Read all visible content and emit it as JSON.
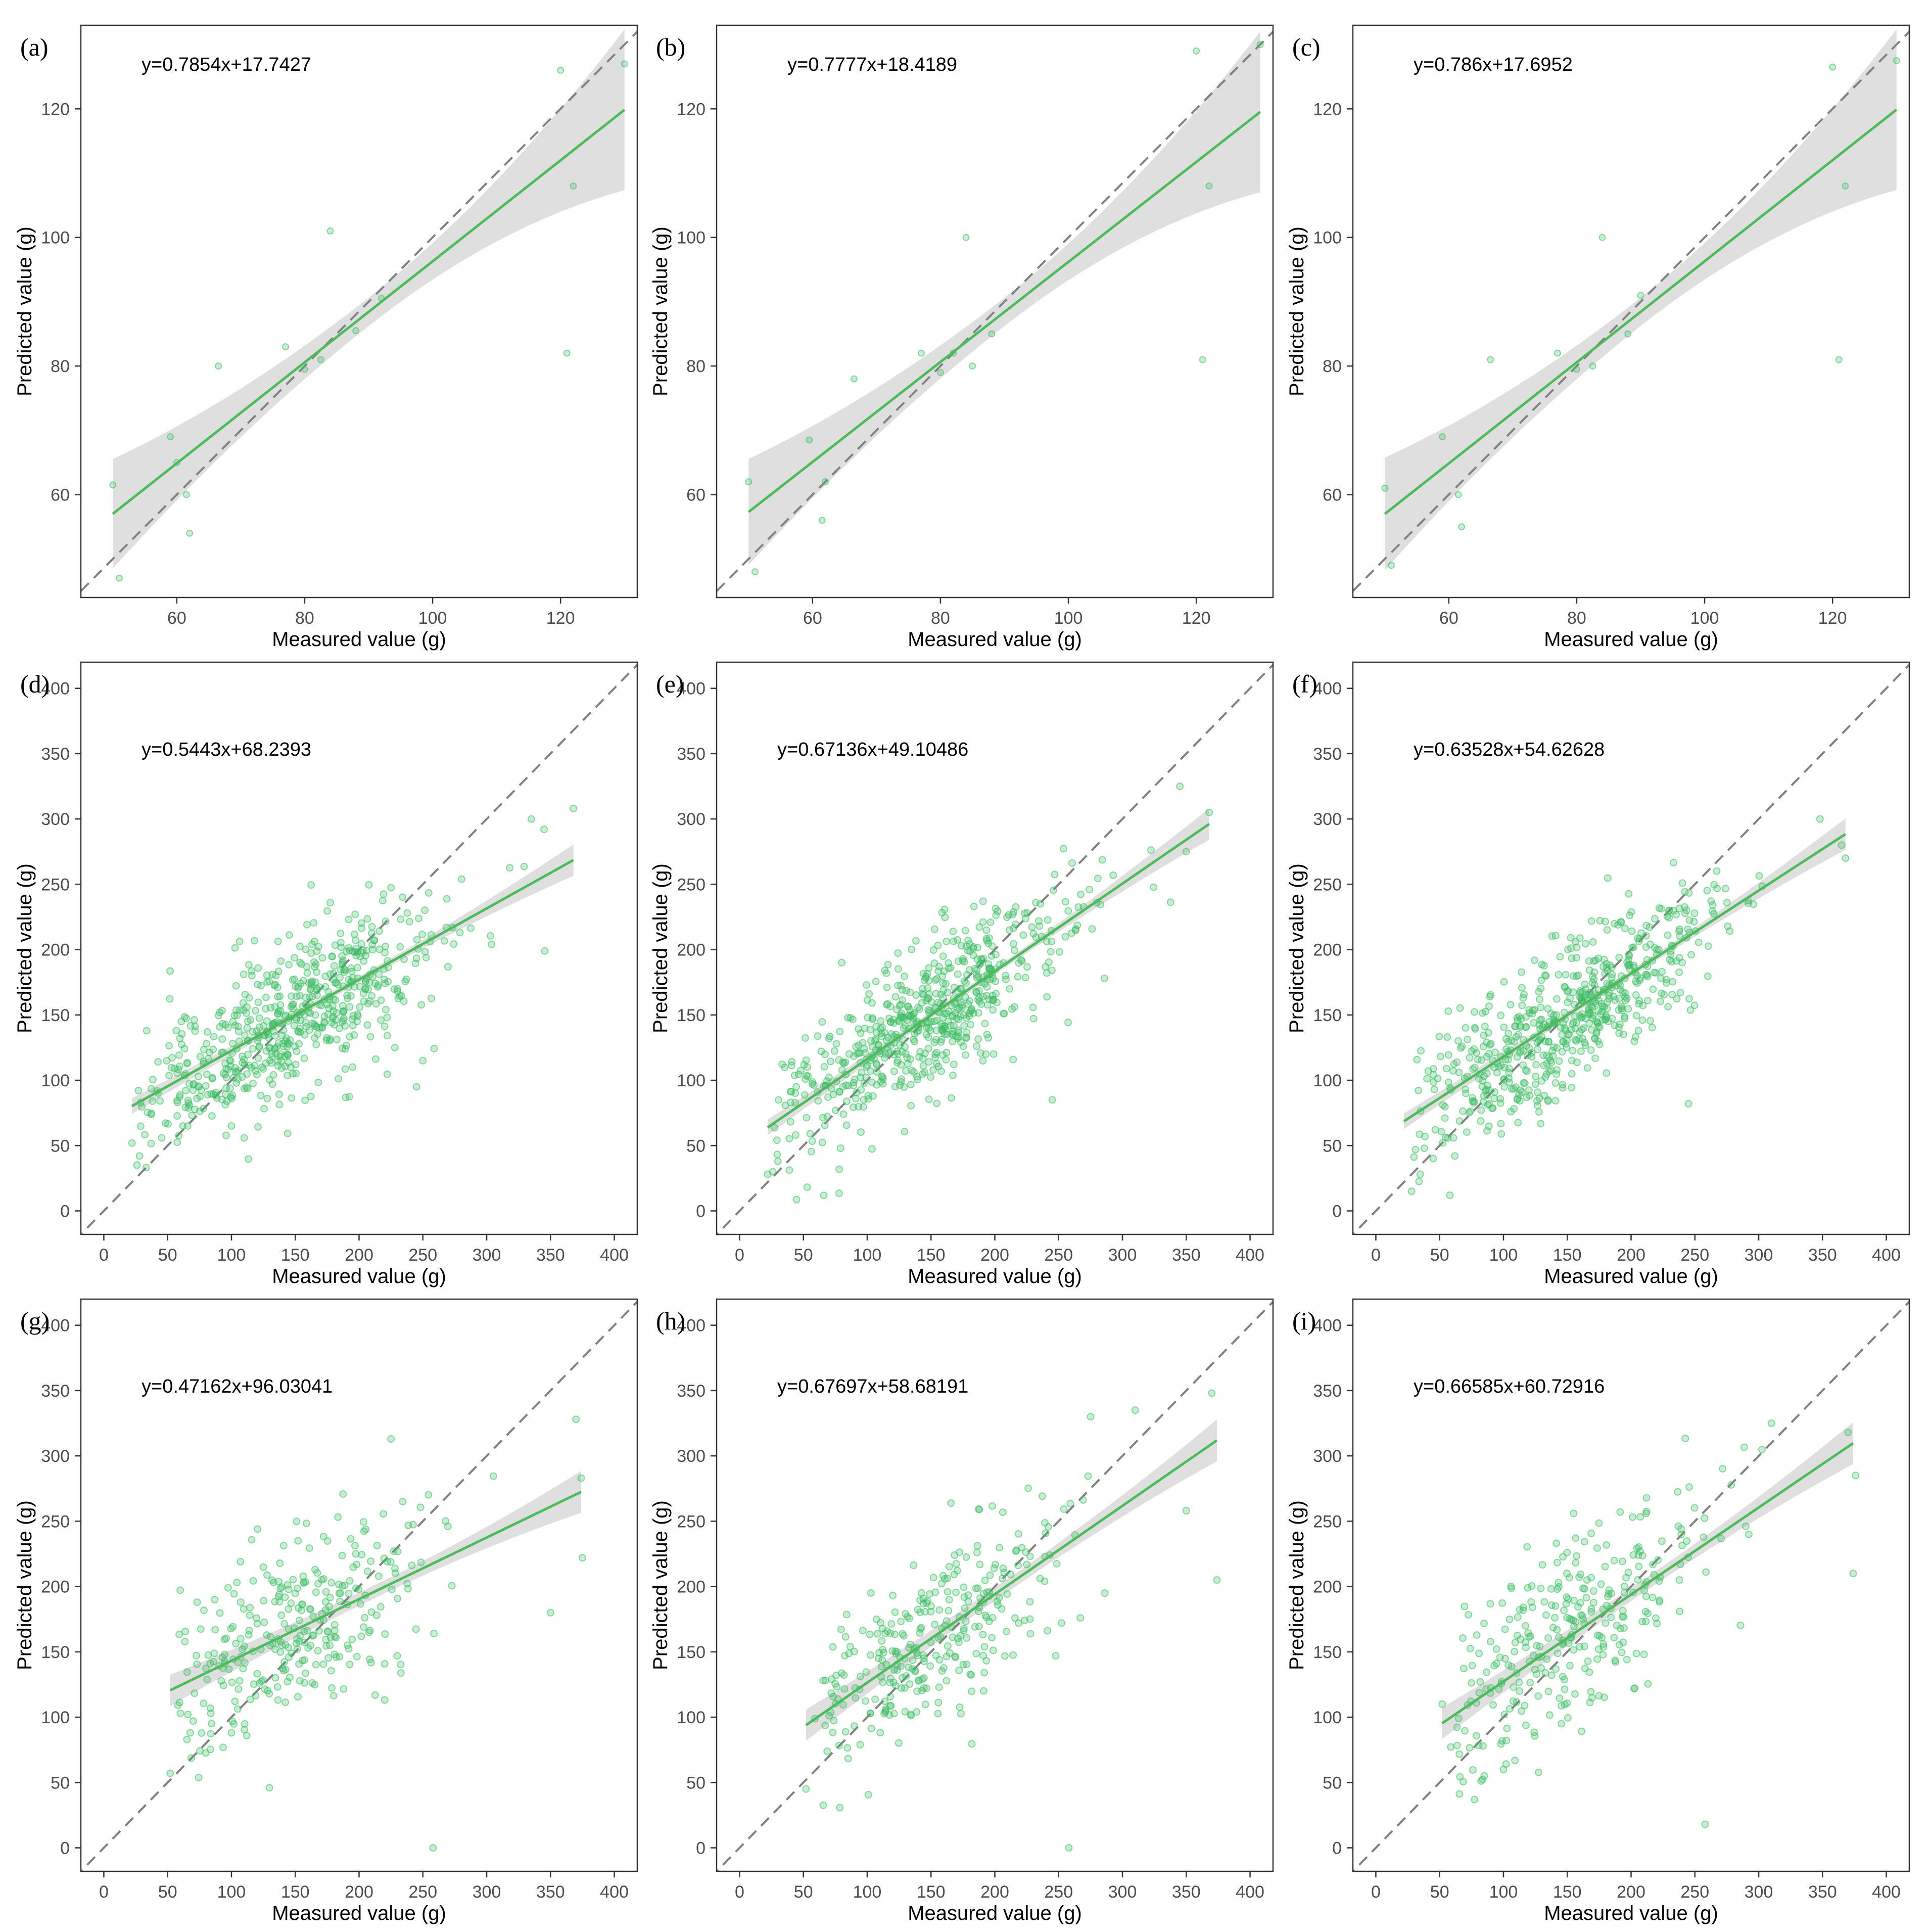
{
  "figure": {
    "axis_labels": {
      "x": "Measured value (g)",
      "y": "Predicted value (g)"
    },
    "colors": {
      "point": "#3dbb63",
      "fit_line": "#4cbb5a",
      "band": "#d9d9d9",
      "identity": "#808080",
      "frame": "#333333",
      "tick_text": "#4d4d4d"
    }
  },
  "chart_data": [
    {
      "panel": "(a)",
      "type": "scatter",
      "equation": "y=0.7854x+17.7427",
      "xlim": [
        45,
        132
      ],
      "ylim": [
        44,
        133
      ],
      "xticks": [
        60,
        80,
        100,
        120
      ],
      "yticks": [
        60,
        80,
        100,
        120
      ],
      "fit": {
        "slope": 0.7854,
        "intercept": 17.7427,
        "x_range": [
          50,
          130
        ],
        "ci_low_edge": [
          49.5,
          108
        ],
        "ci_high_edge": [
          66.5,
          133
        ]
      },
      "points": [
        [
          50,
          61.5
        ],
        [
          51,
          47
        ],
        [
          59,
          69
        ],
        [
          60,
          65
        ],
        [
          61.5,
          60
        ],
        [
          62,
          54
        ],
        [
          66.5,
          80
        ],
        [
          77,
          83
        ],
        [
          80,
          79.5
        ],
        [
          82.5,
          81
        ],
        [
          84,
          101
        ],
        [
          88,
          85.5
        ],
        [
          92,
          90.5
        ],
        [
          120,
          126
        ],
        [
          121,
          82
        ],
        [
          122,
          108
        ],
        [
          130,
          127
        ]
      ]
    },
    {
      "panel": "(b)",
      "type": "scatter",
      "equation": "y=0.7777x+18.4189",
      "xlim": [
        45,
        132
      ],
      "ylim": [
        44,
        133
      ],
      "xticks": [
        60,
        80,
        100,
        120
      ],
      "yticks": [
        60,
        80,
        100,
        120
      ],
      "fit": {
        "slope": 0.7777,
        "intercept": 18.4189,
        "x_range": [
          50,
          130
        ],
        "ci_low_edge": [
          50,
          107.5
        ],
        "ci_high_edge": [
          66.5,
          132.5
        ]
      },
      "points": [
        [
          50,
          62
        ],
        [
          51,
          48
        ],
        [
          59.5,
          68.5
        ],
        [
          61.5,
          56
        ],
        [
          62,
          62
        ],
        [
          66.5,
          78
        ],
        [
          77,
          82
        ],
        [
          80,
          79
        ],
        [
          82,
          82
        ],
        [
          84,
          100
        ],
        [
          85,
          80
        ],
        [
          88,
          85
        ],
        [
          120,
          129
        ],
        [
          121,
          81
        ],
        [
          122,
          108
        ],
        [
          130,
          130
        ]
      ]
    },
    {
      "panel": "(c)",
      "type": "scatter",
      "equation": "y=0.786x+17.6952",
      "xlim": [
        45,
        132
      ],
      "ylim": [
        44,
        133
      ],
      "xticks": [
        60,
        80,
        100,
        120
      ],
      "yticks": [
        60,
        80,
        100,
        120
      ],
      "fit": {
        "slope": 0.786,
        "intercept": 17.6952,
        "x_range": [
          50,
          130
        ],
        "ci_low_edge": [
          49,
          108
        ],
        "ci_high_edge": [
          66.5,
          133
        ]
      },
      "points": [
        [
          50,
          61
        ],
        [
          51,
          49
        ],
        [
          59,
          69
        ],
        [
          61.5,
          60
        ],
        [
          62,
          55
        ],
        [
          66.5,
          81
        ],
        [
          77,
          82
        ],
        [
          80,
          79.5
        ],
        [
          82.5,
          80
        ],
        [
          84,
          100
        ],
        [
          88,
          85
        ],
        [
          90,
          91
        ],
        [
          120,
          126.5
        ],
        [
          121,
          81
        ],
        [
          122,
          108
        ],
        [
          130,
          127.5
        ]
      ]
    },
    {
      "panel": "(d)",
      "type": "scatter",
      "equation": "y=0.5443x+68.2393",
      "xlim": [
        -18,
        418
      ],
      "ylim": [
        -18,
        420
      ],
      "xticks": [
        0,
        50,
        100,
        150,
        200,
        250,
        300,
        350,
        400
      ],
      "yticks": [
        0,
        50,
        100,
        150,
        200,
        250,
        300,
        350,
        400
      ],
      "fit": {
        "slope": 0.5443,
        "intercept": 68.2393,
        "x_range": [
          22,
          368
        ],
        "band_halfwidth": [
          6,
          2.5,
          12
        ]
      },
      "n_points": 600,
      "seed": 11,
      "noise_sd": 30,
      "extreme_points": [
        [
          22,
          52
        ],
        [
          26,
          35
        ],
        [
          28,
          42
        ],
        [
          62,
          65
        ],
        [
          100,
          65
        ],
        [
          230,
          170
        ],
        [
          245,
          95
        ],
        [
          250,
          115
        ],
        [
          335,
          300
        ],
        [
          345,
          292
        ],
        [
          368,
          308
        ]
      ]
    },
    {
      "panel": "(e)",
      "type": "scatter",
      "equation": "y=0.67136x+49.10486",
      "xlim": [
        -18,
        418
      ],
      "ylim": [
        -18,
        420
      ],
      "xticks": [
        0,
        50,
        100,
        150,
        200,
        250,
        300,
        350,
        400
      ],
      "yticks": [
        0,
        50,
        100,
        150,
        200,
        250,
        300,
        350,
        400
      ],
      "fit": {
        "slope": 0.67136,
        "intercept": 49.10486,
        "x_range": [
          22,
          368
        ],
        "band_halfwidth": [
          6,
          2.5,
          12
        ]
      },
      "n_points": 600,
      "seed": 23,
      "noise_sd": 28,
      "extreme_points": [
        [
          22,
          28
        ],
        [
          26,
          30
        ],
        [
          30,
          38
        ],
        [
          80,
          190
        ],
        [
          245,
          85
        ],
        [
          345,
          325
        ],
        [
          368,
          305
        ],
        [
          350,
          275
        ]
      ]
    },
    {
      "panel": "(f)",
      "type": "scatter",
      "equation": "y=0.63528x+54.62628",
      "xlim": [
        -18,
        418
      ],
      "ylim": [
        -18,
        420
      ],
      "xticks": [
        0,
        50,
        100,
        150,
        200,
        250,
        300,
        350,
        400
      ],
      "yticks": [
        0,
        50,
        100,
        150,
        200,
        250,
        300,
        350,
        400
      ],
      "fit": {
        "slope": 0.63528,
        "intercept": 54.62628,
        "x_range": [
          22,
          368
        ],
        "band_halfwidth": [
          6,
          2.5,
          12
        ]
      },
      "n_points": 600,
      "seed": 37,
      "noise_sd": 28,
      "extreme_points": [
        [
          28,
          15
        ],
        [
          45,
          40
        ],
        [
          58,
          12
        ],
        [
          245,
          82
        ],
        [
          348,
          300
        ],
        [
          368,
          270
        ],
        [
          365,
          280
        ]
      ]
    },
    {
      "panel": "(g)",
      "type": "scatter",
      "equation": "y=0.47162x+96.03041",
      "xlim": [
        -18,
        418
      ],
      "ylim": [
        -18,
        420
      ],
      "xticks": [
        0,
        50,
        100,
        150,
        200,
        250,
        300,
        350,
        400
      ],
      "yticks": [
        0,
        50,
        100,
        150,
        200,
        250,
        300,
        350,
        400
      ],
      "fit": {
        "slope": 0.47162,
        "intercept": 96.03041,
        "x_range": [
          52,
          374
        ],
        "band_halfwidth": [
          12,
          5,
          16
        ]
      },
      "n_points": 300,
      "seed": 41,
      "noise_sd": 34,
      "extreme_points": [
        [
          52,
          57
        ],
        [
          60,
          103
        ],
        [
          100,
          88
        ],
        [
          225,
          313
        ],
        [
          258,
          0
        ],
        [
          370,
          328
        ],
        [
          374,
          283
        ],
        [
          375,
          222
        ],
        [
          350,
          180
        ]
      ]
    },
    {
      "panel": "(h)",
      "type": "scatter",
      "equation": "y=0.67697x+58.68191",
      "xlim": [
        -18,
        418
      ],
      "ylim": [
        -18,
        420
      ],
      "xticks": [
        0,
        50,
        100,
        150,
        200,
        250,
        300,
        350,
        400
      ],
      "yticks": [
        0,
        50,
        100,
        150,
        200,
        250,
        300,
        350,
        400
      ],
      "fit": {
        "slope": 0.67697,
        "intercept": 58.68191,
        "x_range": [
          52,
          374
        ],
        "band_halfwidth": [
          12,
          5,
          16
        ]
      },
      "n_points": 300,
      "seed": 53,
      "noise_sd": 34,
      "extreme_points": [
        [
          52,
          45
        ],
        [
          258,
          0
        ],
        [
          275,
          330
        ],
        [
          310,
          335
        ],
        [
          370,
          348
        ],
        [
          374,
          205
        ],
        [
          350,
          258
        ]
      ]
    },
    {
      "panel": "(i)",
      "type": "scatter",
      "equation": "y=0.66585x+60.72916",
      "xlim": [
        -18,
        418
      ],
      "ylim": [
        -18,
        420
      ],
      "xticks": [
        0,
        50,
        100,
        150,
        200,
        250,
        300,
        350,
        400
      ],
      "yticks": [
        0,
        50,
        100,
        150,
        200,
        250,
        300,
        350,
        400
      ],
      "fit": {
        "slope": 0.66585,
        "intercept": 60.72916,
        "x_range": [
          52,
          374
        ],
        "band_halfwidth": [
          12,
          5,
          16
        ]
      },
      "n_points": 300,
      "seed": 67,
      "noise_sd": 34,
      "extreme_points": [
        [
          52,
          110
        ],
        [
          258,
          18
        ],
        [
          310,
          325
        ],
        [
          370,
          318
        ],
        [
          374,
          210
        ],
        [
          376,
          285
        ],
        [
          100,
          60
        ],
        [
          85,
          55
        ]
      ]
    }
  ]
}
